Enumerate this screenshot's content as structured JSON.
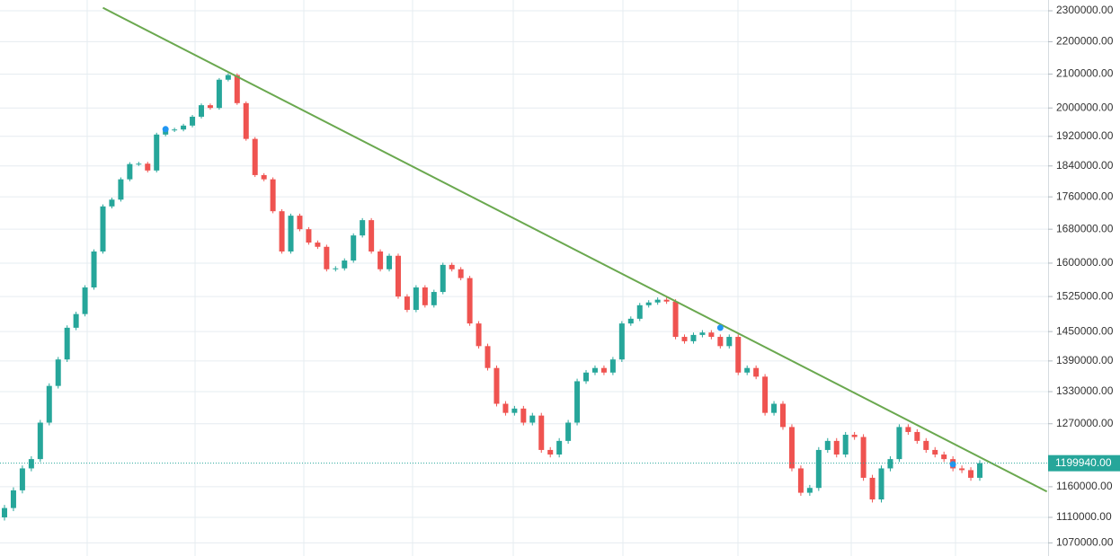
{
  "chart_data": {
    "type": "candlestick",
    "open": [
      1110000,
      1125000,
      1154000,
      1191000,
      1207000,
      1272000,
      1341000,
      1393000,
      1458000,
      1487000,
      1545000,
      1627000,
      1736000,
      1753000,
      1805000,
      1845000,
      1846000,
      1828000,
      1925000,
      1937000,
      1939000,
      1950000,
      1975000,
      2008000,
      2000000,
      2083000,
      2097000,
      2014000,
      1913000,
      1816000,
      1805000,
      1724000,
      1627000,
      1713000,
      1680000,
      1648000,
      1638000,
      1586000,
      1588000,
      1606000,
      1665000,
      1702000,
      1627000,
      1586000,
      1617000,
      1525000,
      1496000,
      1545000,
      1506000,
      1535000,
      1596000,
      1586000,
      1566000,
      1467000,
      1420000,
      1376000,
      1307000,
      1290000,
      1298000,
      1272000,
      1285000,
      1223000,
      1215000,
      1239000,
      1272000,
      1350000,
      1367000,
      1376000,
      1367000,
      1393000,
      1467000,
      1477000,
      1506000,
      1512000,
      1518000,
      1514000,
      1439000,
      1430000,
      1443000,
      1448000,
      1439000,
      1420000,
      1439000,
      1367000,
      1376000,
      1359000,
      1290000,
      1307000,
      1264000,
      1191000,
      1150000,
      1158000,
      1223000,
      1239000,
      1215000,
      1250000,
      1246000,
      1175000,
      1139000,
      1191000,
      1207000,
      1264000,
      1255000,
      1239000,
      1223000,
      1215000,
      1207000,
      1191000,
      1188000,
      1175000
    ],
    "high": [
      1130000,
      1159000,
      1196000,
      1212000,
      1277000,
      1346000,
      1398000,
      1463000,
      1492000,
      1550000,
      1632000,
      1741000,
      1758000,
      1810000,
      1850000,
      1851000,
      1851000,
      1930000,
      1942000,
      1944000,
      1955000,
      1980000,
      2013000,
      2013000,
      2088000,
      2102000,
      2102000,
      2019000,
      1918000,
      1821000,
      1810000,
      1729000,
      1718000,
      1718000,
      1685000,
      1653000,
      1643000,
      1593000,
      1611000,
      1670000,
      1707000,
      1707000,
      1632000,
      1622000,
      1622000,
      1530000,
      1550000,
      1550000,
      1540000,
      1601000,
      1601000,
      1591000,
      1571000,
      1472000,
      1425000,
      1381000,
      1312000,
      1303000,
      1303000,
      1290000,
      1290000,
      1228000,
      1244000,
      1277000,
      1355000,
      1372000,
      1381000,
      1381000,
      1398000,
      1472000,
      1482000,
      1511000,
      1517000,
      1523000,
      1523000,
      1519000,
      1444000,
      1448000,
      1453000,
      1453000,
      1444000,
      1444000,
      1444000,
      1381000,
      1381000,
      1364000,
      1312000,
      1312000,
      1269000,
      1196000,
      1163000,
      1228000,
      1244000,
      1244000,
      1255000,
      1255000,
      1251000,
      1180000,
      1196000,
      1212000,
      1269000,
      1269000,
      1260000,
      1244000,
      1228000,
      1220000,
      1212000,
      1196000,
      1193000,
      1205000
    ],
    "low": [
      1105000,
      1120000,
      1149000,
      1186000,
      1202000,
      1267000,
      1336000,
      1388000,
      1453000,
      1482000,
      1540000,
      1622000,
      1731000,
      1748000,
      1800000,
      1840000,
      1823000,
      1823000,
      1920000,
      1932000,
      1934000,
      1945000,
      1970000,
      1995000,
      1995000,
      2078000,
      2009000,
      1908000,
      1811000,
      1800000,
      1719000,
      1622000,
      1622000,
      1675000,
      1643000,
      1633000,
      1581000,
      1581000,
      1583000,
      1601000,
      1660000,
      1622000,
      1581000,
      1581000,
      1520000,
      1491000,
      1491000,
      1501000,
      1501000,
      1530000,
      1581000,
      1561000,
      1462000,
      1415000,
      1371000,
      1302000,
      1285000,
      1285000,
      1267000,
      1267000,
      1218000,
      1210000,
      1210000,
      1234000,
      1267000,
      1345000,
      1362000,
      1362000,
      1362000,
      1388000,
      1462000,
      1472000,
      1501000,
      1507000,
      1509000,
      1434000,
      1425000,
      1425000,
      1438000,
      1434000,
      1415000,
      1415000,
      1362000,
      1362000,
      1354000,
      1285000,
      1285000,
      1259000,
      1186000,
      1145000,
      1145000,
      1153000,
      1218000,
      1210000,
      1210000,
      1241000,
      1170000,
      1134000,
      1134000,
      1186000,
      1202000,
      1250000,
      1234000,
      1218000,
      1210000,
      1202000,
      1186000,
      1183000,
      1170000,
      1170000
    ],
    "close": [
      1125000,
      1154000,
      1191000,
      1207000,
      1272000,
      1341000,
      1393000,
      1458000,
      1487000,
      1545000,
      1627000,
      1736000,
      1753000,
      1805000,
      1845000,
      1846000,
      1828000,
      1925000,
      1937000,
      1939000,
      1950000,
      1975000,
      2008000,
      2000000,
      2083000,
      2097000,
      2014000,
      1913000,
      1816000,
      1805000,
      1724000,
      1627000,
      1713000,
      1680000,
      1648000,
      1638000,
      1586000,
      1588000,
      1606000,
      1665000,
      1702000,
      1627000,
      1586000,
      1617000,
      1525000,
      1496000,
      1545000,
      1506000,
      1535000,
      1596000,
      1586000,
      1566000,
      1467000,
      1420000,
      1376000,
      1307000,
      1290000,
      1298000,
      1272000,
      1285000,
      1223000,
      1215000,
      1239000,
      1272000,
      1350000,
      1367000,
      1376000,
      1367000,
      1393000,
      1467000,
      1477000,
      1506000,
      1512000,
      1518000,
      1514000,
      1439000,
      1430000,
      1443000,
      1448000,
      1439000,
      1420000,
      1439000,
      1367000,
      1376000,
      1359000,
      1290000,
      1307000,
      1264000,
      1191000,
      1150000,
      1158000,
      1223000,
      1239000,
      1215000,
      1250000,
      1246000,
      1175000,
      1139000,
      1191000,
      1207000,
      1264000,
      1255000,
      1239000,
      1223000,
      1215000,
      1207000,
      1191000,
      1188000,
      1175000,
      1199940
    ],
    "up_color": "#26a69a",
    "down_color": "#ef5350",
    "log_scale": true,
    "grid": true,
    "ylim": [
      1050000,
      2336000
    ],
    "yticks": [
      {
        "value": 2300000,
        "label": "2300000.00"
      },
      {
        "value": 2200000,
        "label": "2200000.00"
      },
      {
        "value": 2100000,
        "label": "2100000.00"
      },
      {
        "value": 2000000,
        "label": "2000000.00"
      },
      {
        "value": 1920000,
        "label": "1920000.00"
      },
      {
        "value": 1840000,
        "label": "1840000.00"
      },
      {
        "value": 1760000,
        "label": "1760000.00"
      },
      {
        "value": 1680000,
        "label": "1680000.00"
      },
      {
        "value": 1600000,
        "label": "1600000.00"
      },
      {
        "value": 1525000,
        "label": "1525000.00"
      },
      {
        "value": 1450000,
        "label": "1450000.00"
      },
      {
        "value": 1390000,
        "label": "1390000.00"
      },
      {
        "value": 1330000,
        "label": "1330000.00"
      },
      {
        "value": 1270000,
        "label": "1270000.00"
      },
      {
        "value": 1160000,
        "label": "1160000.00"
      },
      {
        "value": 1110000,
        "label": "1110000.00"
      },
      {
        "value": 1070000,
        "label": "1070000.00"
      }
    ],
    "price_line": {
      "value": 1199940,
      "label": "1199940.00",
      "color": "#26a69a"
    },
    "trendline": {
      "x": [
        11,
        116.5
      ],
      "values": [
        2310000,
        1152000
      ],
      "color": "#6aa84f"
    },
    "markers": {
      "x": [
        18,
        80,
        106
      ],
      "values": [
        1940000,
        1458000,
        1198000
      ],
      "color": "#2196f3"
    }
  }
}
